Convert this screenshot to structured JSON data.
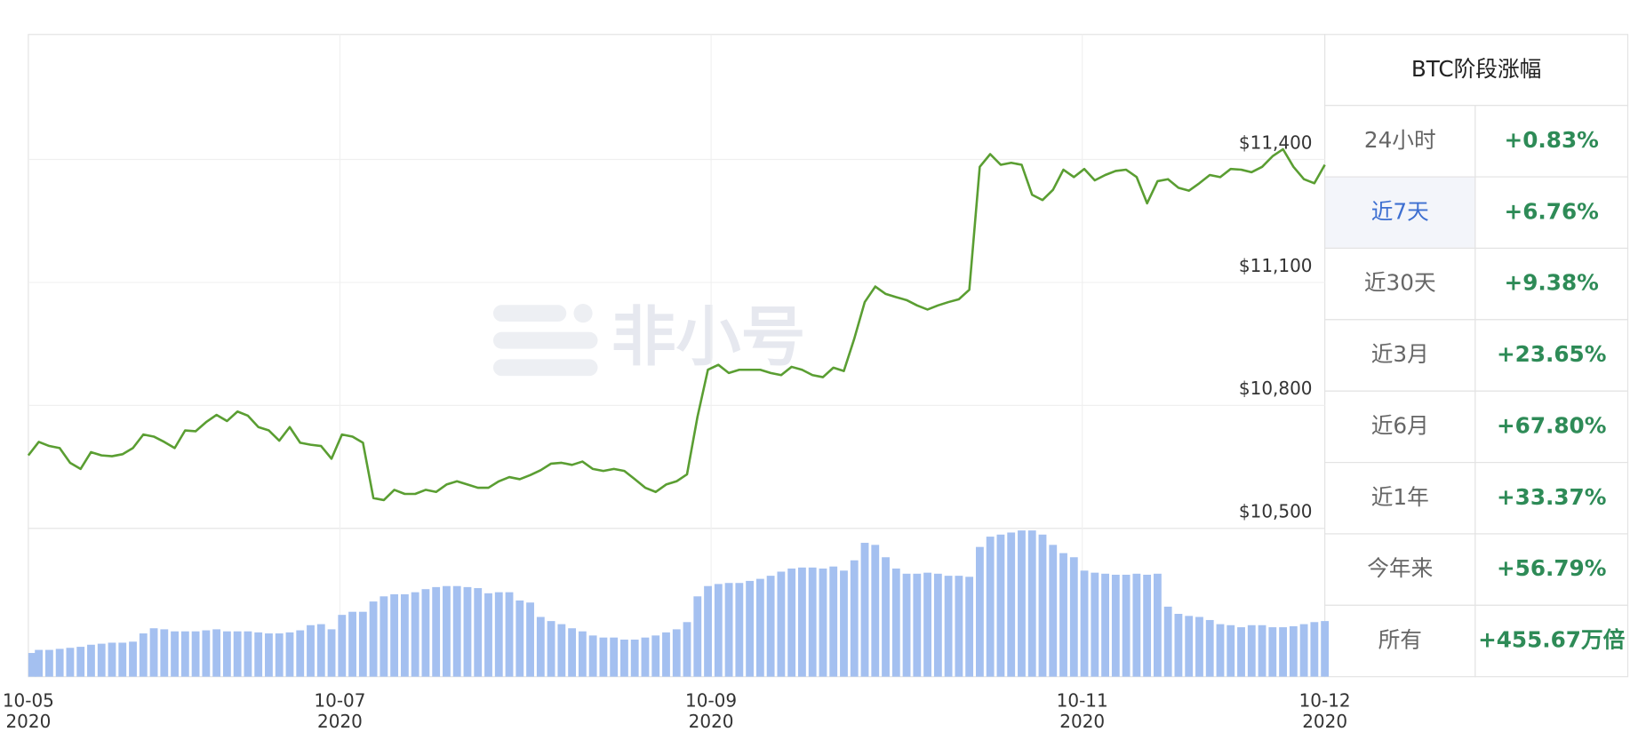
{
  "chart_data": {
    "type": "line",
    "watermark": "非小号",
    "line_color": "#5a9e32",
    "bar_color": "#a4c0f0",
    "grid": true,
    "ylim": [
      10500,
      11705
    ],
    "yticks": [
      {
        "value": 10500,
        "label": "$10,500"
      },
      {
        "value": 10800,
        "label": "$10,800"
      },
      {
        "value": 11100,
        "label": "$11,100"
      },
      {
        "value": 11400,
        "label": "$11,400"
      }
    ],
    "xticks": [
      {
        "value": 0,
        "label": [
          "10-05",
          "2020"
        ]
      },
      {
        "value": 29.8,
        "label": [
          "10-07",
          "2020"
        ]
      },
      {
        "value": 65.3,
        "label": [
          "10-09",
          "2020"
        ]
      },
      {
        "value": 100.8,
        "label": [
          "10-11",
          "2020"
        ]
      },
      {
        "value": 124,
        "label": [
          "10-12",
          "2020"
        ]
      }
    ],
    "values": [
      10678,
      10711,
      10701,
      10696,
      10660,
      10645,
      10686,
      10678,
      10676,
      10681,
      10696,
      10729,
      10724,
      10711,
      10696,
      10739,
      10737,
      10759,
      10777,
      10762,
      10785,
      10775,
      10747,
      10739,
      10714,
      10747,
      10709,
      10704,
      10701,
      10670,
      10729,
      10724,
      10709,
      10574,
      10569,
      10594,
      10584,
      10584,
      10594,
      10589,
      10607,
      10615,
      10607,
      10599,
      10599,
      10615,
      10625,
      10620,
      10630,
      10642,
      10658,
      10660,
      10655,
      10663,
      10645,
      10640,
      10645,
      10640,
      10620,
      10599,
      10589,
      10607,
      10615,
      10632,
      10772,
      10887,
      10899,
      10879,
      10887,
      10887,
      10887,
      10879,
      10874,
      10894,
      10887,
      10874,
      10869,
      10892,
      10884,
      10963,
      11052,
      11090,
      11072,
      11064,
      11057,
      11044,
      11034,
      11044,
      11052,
      11059,
      11082,
      11382,
      11413,
      11387,
      11392,
      11387,
      11314,
      11301,
      11326,
      11375,
      11357,
      11377,
      11349,
      11362,
      11372,
      11375,
      11357,
      11293,
      11347,
      11352,
      11331,
      11324,
      11342,
      11362,
      11357,
      11377,
      11375,
      11369,
      11382,
      11408,
      11425,
      11382,
      11352,
      11342,
      11387
    ],
    "volume": [
      23,
      26,
      26,
      27,
      28,
      29,
      31,
      32,
      33,
      33,
      34,
      42,
      47,
      46,
      44,
      44,
      44,
      45,
      46,
      44,
      44,
      44,
      43,
      42,
      42,
      43,
      45,
      50,
      51,
      46,
      60,
      63,
      63,
      73,
      78,
      80,
      80,
      82,
      85,
      87,
      88,
      88,
      87,
      86,
      81,
      82,
      82,
      74,
      72,
      58,
      54,
      51,
      47,
      44,
      40,
      38,
      38,
      36,
      36,
      38,
      40,
      43,
      46,
      53,
      78,
      88,
      90,
      91,
      91,
      93,
      95,
      98,
      102,
      105,
      106,
      106,
      105,
      107,
      103,
      113,
      130,
      128,
      116,
      105,
      100,
      100,
      101,
      100,
      98,
      98,
      97,
      126,
      136,
      138,
      140,
      142,
      142,
      138,
      128,
      120,
      116,
      103,
      101,
      100,
      99,
      99,
      100,
      99,
      100,
      68,
      61,
      59,
      58,
      55,
      51,
      50,
      48,
      50,
      50,
      48,
      48,
      49,
      51,
      53,
      54
    ]
  },
  "table": {
    "title": "BTC阶段涨幅",
    "active_row": 1,
    "rows": [
      [
        "24小时",
        "+0.83%"
      ],
      [
        "近7天",
        "+6.76%"
      ],
      [
        "近30天",
        "+9.38%"
      ],
      [
        "近3月",
        "+23.65%"
      ],
      [
        "近6月",
        "+67.80%"
      ],
      [
        "近1年",
        "+33.37%"
      ],
      [
        "今年来",
        "+56.79%"
      ],
      [
        "所有",
        "+455.67万倍"
      ]
    ]
  }
}
